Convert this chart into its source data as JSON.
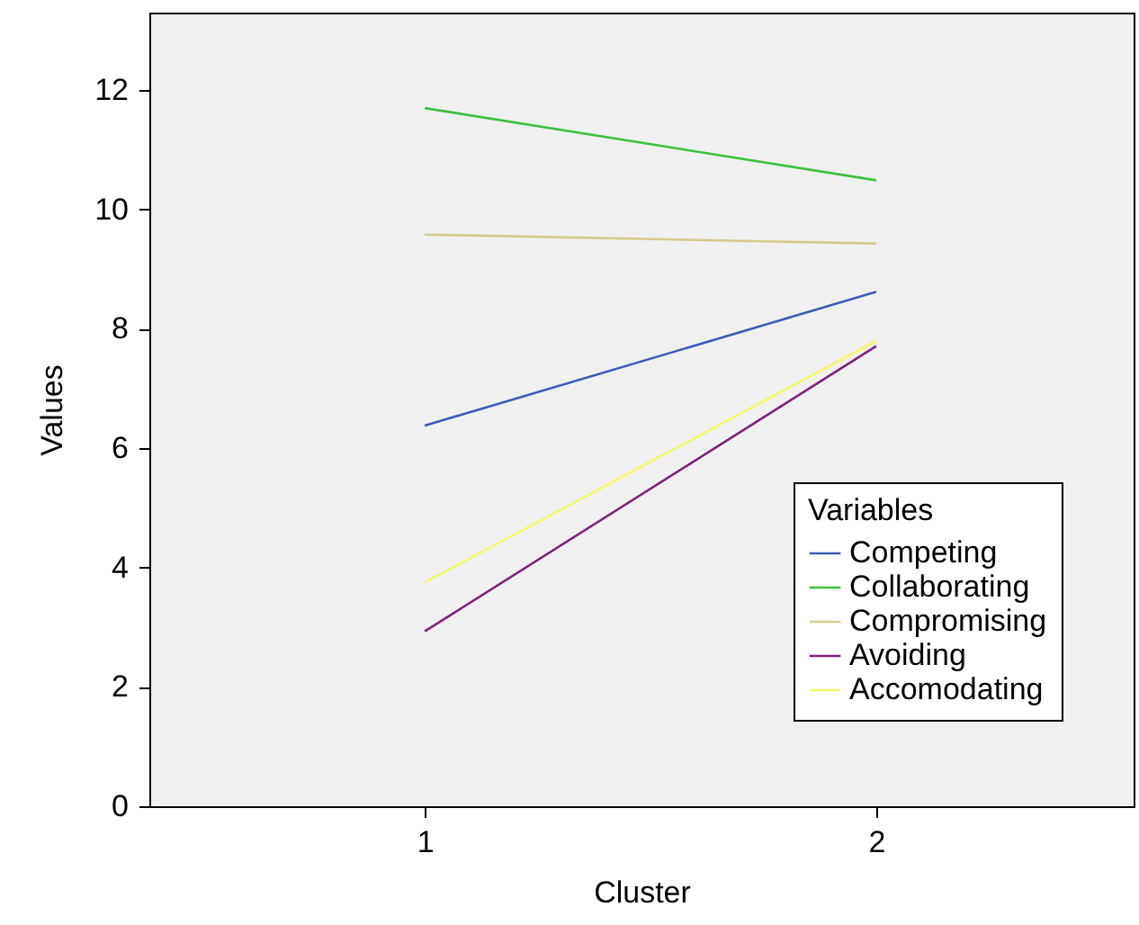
{
  "chart_data": {
    "type": "line",
    "xlabel": "Cluster",
    "ylabel": "Values",
    "x": [
      1,
      2
    ],
    "xlim": [
      0.39,
      2.57
    ],
    "xticks": [
      1,
      2
    ],
    "ylim": [
      0,
      13.3
    ],
    "yticks": [
      0,
      2,
      4,
      6,
      8,
      10,
      12
    ],
    "legend_title": "Variables",
    "legend": "bottom right",
    "grid": false,
    "marker": "none",
    "line_style": "solid",
    "series": [
      {
        "name": "Competing",
        "color": "#3b5cb8",
        "values": [
          6.38,
          8.62
        ]
      },
      {
        "name": "Collaborating",
        "color": "#3ec13e",
        "values": [
          11.7,
          10.49
        ]
      },
      {
        "name": "Compromising",
        "color": "#d6c98e",
        "values": [
          9.58,
          9.43
        ]
      },
      {
        "name": "Avoiding",
        "color": "#7b237b",
        "values": [
          2.93,
          7.71
        ]
      },
      {
        "name": "Accomodating",
        "color": "#f5f56a",
        "values": [
          3.75,
          7.8
        ]
      }
    ]
  }
}
